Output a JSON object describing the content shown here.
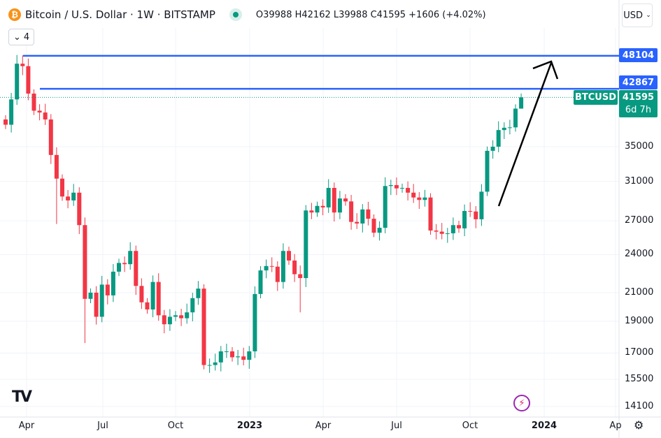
{
  "header": {
    "title": "Bitcoin / U.S. Dollar · 1W · BITSTAMP",
    "ohlc": "O39988 H42162 L39988 C41595 +1606 (+4.02%)",
    "indicator_count": "4",
    "currency": "USD"
  },
  "colors": {
    "up": "#089981",
    "down": "#f23645",
    "level": "#2962ff",
    "arrow": "#000000"
  },
  "tags": {
    "level1": "48104",
    "level2": "42867",
    "symbol": "BTCUSD",
    "price": "41595",
    "countdown": "6d 7h"
  },
  "chart_data": {
    "type": "candlestick",
    "scale": "log",
    "y_ticks": [
      35000,
      31000,
      27000,
      24000,
      21000,
      19000,
      17000,
      15500,
      14100
    ],
    "y_tick_labels": [
      "35000",
      "31000",
      "27000",
      "24000",
      "21000",
      "19000",
      "17000",
      "15500",
      "14100"
    ],
    "x_ticks": [
      "Apr",
      "Jul",
      "Oct",
      "2023",
      "Apr",
      "Jul",
      "Oct",
      "2024",
      "Ap"
    ],
    "first_open": 38500,
    "closes": [
      37800,
      41300,
      46800,
      46400,
      42150,
      39700,
      39450,
      38500,
      34000,
      31300,
      29400,
      29000,
      29800,
      26600,
      20550,
      21000,
      19300,
      21600,
      20800,
      22600,
      23300,
      23200,
      24300,
      21500,
      20300,
      19800,
      21800,
      19400,
      18800,
      19300,
      19400,
      19200,
      19600,
      20600,
      21300,
      16300,
      16300,
      16450,
      17100,
      17100,
      16750,
      16800,
      16600,
      17100,
      20900,
      22700,
      23050,
      23000,
      21800,
      24300,
      23500,
      22400,
      22100,
      28000,
      27800,
      28450,
      28300,
      30300,
      27800,
      29200,
      28900,
      26900,
      26750,
      28100,
      27200,
      25900,
      26350,
      30500,
      30600,
      30250,
      30300,
      29800,
      29300,
      29050,
      29300,
      26100,
      26000,
      25800,
      25850,
      26600,
      26300,
      27950,
      27900,
      27150,
      29900,
      34500,
      35000,
      37100,
      37400,
      37450,
      39988,
      41595
    ],
    "last_candle": {
      "open": 39988,
      "high": 42162,
      "low": 39988,
      "close": 41595
    },
    "horizontal_levels": [
      48104,
      42867
    ],
    "current_price": 41595
  }
}
